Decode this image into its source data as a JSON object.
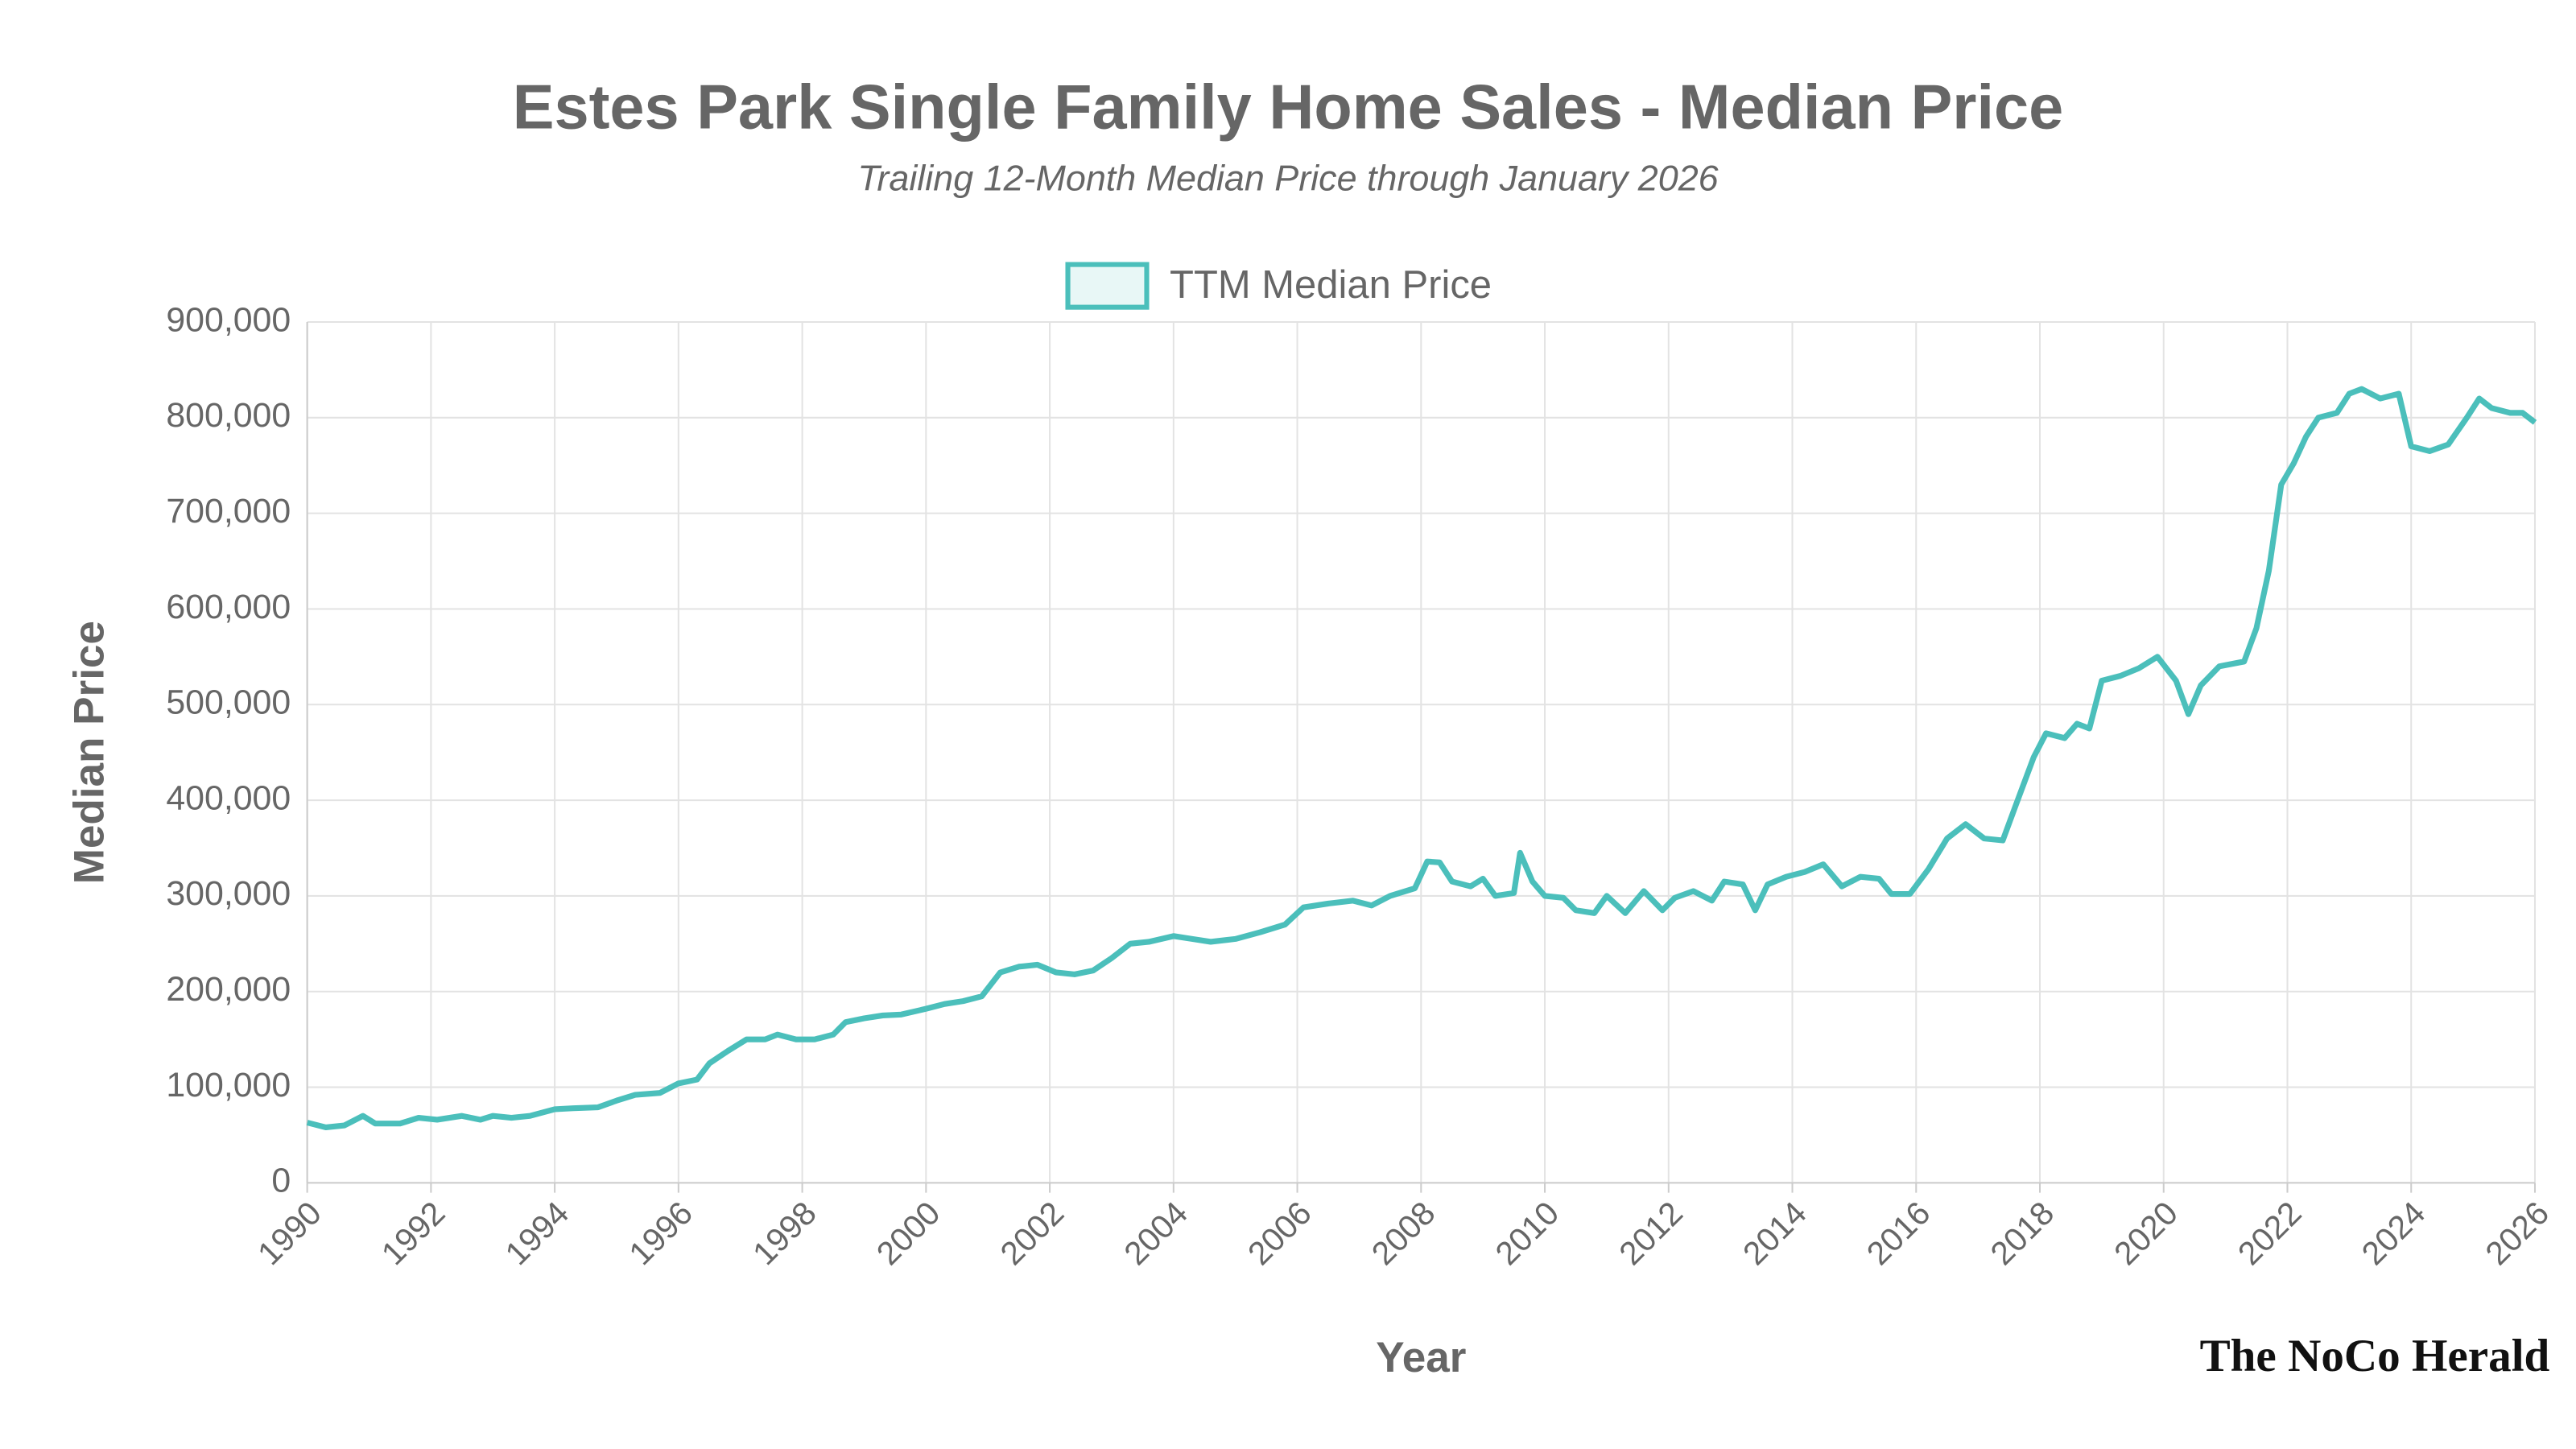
{
  "chart_data": {
    "type": "line",
    "title": "Estes Park Single Family Home Sales - Median Price",
    "subtitle": "Trailing 12-Month Median Price through January 2026",
    "x_label": "Year",
    "y_label": "Median Price",
    "credit": "The NoCo Herald",
    "grid": true,
    "legend": "top",
    "xlim": [
      1990,
      2026
    ],
    "xticks": [
      1990,
      1992,
      1994,
      1996,
      1998,
      2000,
      2002,
      2004,
      2006,
      2008,
      2010,
      2012,
      2014,
      2016,
      2018,
      2020,
      2022,
      2024,
      2026
    ],
    "ylim": [
      0,
      900000
    ],
    "yticks": [
      0,
      {
        "value": 100000,
        "label": "100,000"
      },
      {
        "value": 200000,
        "label": "200,000"
      },
      {
        "value": 300000,
        "label": "300,000"
      },
      {
        "value": 400000,
        "label": "400,000"
      },
      {
        "value": 500000,
        "label": "500,000"
      },
      {
        "value": 600000,
        "label": "600,000"
      },
      {
        "value": 700000,
        "label": "700,000"
      },
      {
        "value": 800000,
        "label": "800,000"
      },
      {
        "value": 900000,
        "label": "900,000"
      }
    ],
    "x": [
      1990.0,
      1990.3,
      1990.6,
      1990.9,
      1991.1,
      1991.5,
      1991.8,
      1992.1,
      1992.5,
      1992.8,
      1993.0,
      1993.3,
      1993.6,
      1994.0,
      1994.3,
      1994.7,
      1995.0,
      1995.3,
      1995.7,
      1996.0,
      1996.3,
      1996.5,
      1996.8,
      1997.1,
      1997.4,
      1997.6,
      1997.9,
      1998.2,
      1998.5,
      1998.7,
      1999.0,
      1999.3,
      1999.6,
      2000.0,
      2000.3,
      2000.6,
      2000.9,
      2001.2,
      2001.5,
      2001.8,
      2002.1,
      2002.4,
      2002.7,
      2003.0,
      2003.3,
      2003.6,
      2004.0,
      2004.3,
      2004.6,
      2005.0,
      2005.4,
      2005.8,
      2006.1,
      2006.5,
      2006.9,
      2007.2,
      2007.5,
      2007.9,
      2008.1,
      2008.3,
      2008.5,
      2008.8,
      2009.0,
      2009.2,
      2009.5,
      2009.6,
      2009.8,
      2010.0,
      2010.3,
      2010.5,
      2010.8,
      2011.0,
      2011.3,
      2011.6,
      2011.9,
      2012.1,
      2012.4,
      2012.7,
      2012.9,
      2013.2,
      2013.4,
      2013.6,
      2013.9,
      2014.2,
      2014.5,
      2014.8,
      2015.1,
      2015.4,
      2015.6,
      2015.9,
      2016.2,
      2016.5,
      2016.8,
      2017.1,
      2017.4,
      2017.6,
      2017.9,
      2018.1,
      2018.4,
      2018.6,
      2018.8,
      2019.0,
      2019.3,
      2019.6,
      2019.9,
      2020.2,
      2020.4,
      2020.6,
      2020.9,
      2021.3,
      2021.5,
      2021.7,
      2021.9,
      2022.1,
      2022.3,
      2022.5,
      2022.8,
      2023.0,
      2023.2,
      2023.5,
      2023.8,
      2024.0,
      2024.3,
      2024.6,
      2024.9,
      2025.1,
      2025.3,
      2025.6,
      2025.8,
      2026.0
    ],
    "series": [
      {
        "name": "TTM Median Price",
        "color": "#4bbfbb",
        "fill": "#e8f7f6",
        "values": [
          63000,
          58000,
          60000,
          70000,
          62000,
          62000,
          68000,
          66000,
          70000,
          66000,
          70000,
          68000,
          70000,
          77000,
          78000,
          79000,
          86000,
          92000,
          94000,
          104000,
          108000,
          125000,
          138000,
          150000,
          150000,
          155000,
          150000,
          150000,
          155000,
          168000,
          172000,
          175000,
          176000,
          182000,
          187000,
          190000,
          195000,
          220000,
          226000,
          228000,
          220000,
          218000,
          222000,
          235000,
          250000,
          252000,
          258000,
          255000,
          252000,
          255000,
          262000,
          270000,
          288000,
          292000,
          295000,
          290000,
          300000,
          308000,
          336000,
          335000,
          315000,
          310000,
          318000,
          300000,
          303000,
          345000,
          315000,
          300000,
          298000,
          285000,
          282000,
          300000,
          282000,
          305000,
          285000,
          298000,
          305000,
          295000,
          315000,
          312000,
          285000,
          312000,
          320000,
          325000,
          333000,
          310000,
          320000,
          318000,
          302000,
          302000,
          328000,
          360000,
          375000,
          360000,
          358000,
          393000,
          445000,
          470000,
          465000,
          480000,
          475000,
          525000,
          530000,
          538000,
          550000,
          525000,
          490000,
          520000,
          540000,
          545000,
          580000,
          640000,
          730000,
          752000,
          780000,
          800000,
          805000,
          825000,
          830000,
          820000,
          825000,
          770000,
          765000,
          772000,
          800000,
          820000,
          810000,
          805000,
          805000,
          795000
        ]
      }
    ]
  }
}
